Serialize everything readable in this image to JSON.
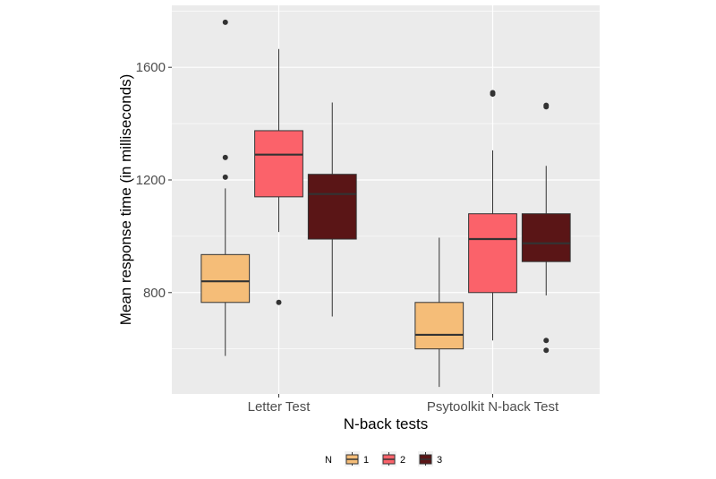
{
  "chart_data": {
    "type": "box",
    "xlabel": "N-back tests",
    "ylabel": "Mean response time (in milliseconds)",
    "ylim": [
      440,
      1820
    ],
    "y_ticks": [
      800,
      1200,
      1600
    ],
    "categories": [
      "Letter Test",
      "Psytoolkit N-back Test"
    ],
    "legend": {
      "title": "N",
      "position": "bottom",
      "entries": [
        "1",
        "2",
        "3"
      ]
    },
    "grid": true,
    "colors": {
      "1": "#f5bd78",
      "2": "#fb626a",
      "3": "#5a1516",
      "panel": "#ebebeb",
      "grid": "#ffffff"
    },
    "series": [
      {
        "name": "1",
        "boxes": [
          {
            "category": "Letter Test",
            "whisker_low": 575,
            "q1": 765,
            "median": 840,
            "q3": 935,
            "whisker_high": 1170,
            "outliers": [
              1210,
              1280,
              1760
            ]
          },
          {
            "category": "Psytoolkit N-back Test",
            "whisker_low": 465,
            "q1": 600,
            "median": 650,
            "q3": 765,
            "whisker_high": 995,
            "outliers": []
          }
        ]
      },
      {
        "name": "2",
        "boxes": [
          {
            "category": "Letter Test",
            "whisker_low": 1015,
            "q1": 1140,
            "median": 1290,
            "q3": 1375,
            "whisker_high": 1665,
            "outliers": [
              765
            ]
          },
          {
            "category": "Psytoolkit N-back Test",
            "whisker_low": 630,
            "q1": 800,
            "median": 990,
            "q3": 1080,
            "whisker_high": 1305,
            "outliers": [
              1505,
              1510
            ]
          }
        ]
      },
      {
        "name": "3",
        "boxes": [
          {
            "category": "Letter Test",
            "whisker_low": 715,
            "q1": 990,
            "median": 1150,
            "q3": 1220,
            "whisker_high": 1475,
            "outliers": []
          },
          {
            "category": "Psytoolkit N-back Test",
            "whisker_low": 790,
            "q1": 910,
            "median": 975,
            "q3": 1080,
            "whisker_high": 1250,
            "outliers": [
              595,
              630,
              1460,
              1465
            ]
          }
        ]
      }
    ]
  }
}
